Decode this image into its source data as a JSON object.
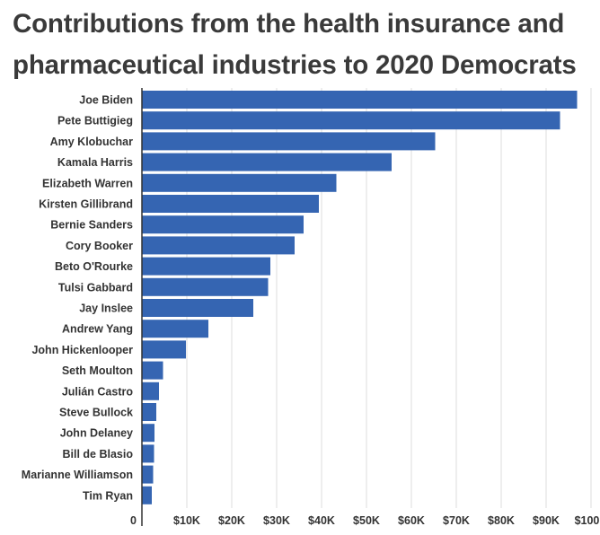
{
  "chart_data": {
    "type": "bar",
    "orientation": "horizontal",
    "title": "Contributions from the health insurance and pharmaceutical industries to 2020 Democrats",
    "categories": [
      "Joe Biden",
      "Pete Buttigieg",
      "Amy Klobuchar",
      "Kamala Harris",
      "Elizabeth Warren",
      "Kirsten Gillibrand",
      "Bernie Sanders",
      "Cory Booker",
      "Beto O'Rourke",
      "Tulsi Gabbard",
      "Jay Inslee",
      "Andrew Yang",
      "John Hickenlooper",
      "Seth Moulton",
      "Julián Castro",
      "Steve Bullock",
      "John Delaney",
      "Bill de Blasio",
      "Marianne Williamson",
      "Tim Ryan"
    ],
    "values": [
      96900,
      93100,
      65300,
      55600,
      43300,
      39400,
      36000,
      34000,
      28600,
      28100,
      24800,
      14800,
      9800,
      4700,
      3800,
      3200,
      2800,
      2700,
      2500,
      2200
    ],
    "xlim": [
      0,
      100000
    ],
    "xticks": [
      0,
      10000,
      20000,
      30000,
      40000,
      50000,
      60000,
      70000,
      80000,
      90000,
      100000
    ],
    "xtick_labels": [
      "0",
      "$10K",
      "$20K",
      "$30K",
      "$40K",
      "$50K",
      "$60K",
      "$70K",
      "$80K",
      "$90K",
      "$100K"
    ],
    "xlabel": "",
    "ylabel": "",
    "grid": true,
    "bar_color": "#3565b2"
  }
}
